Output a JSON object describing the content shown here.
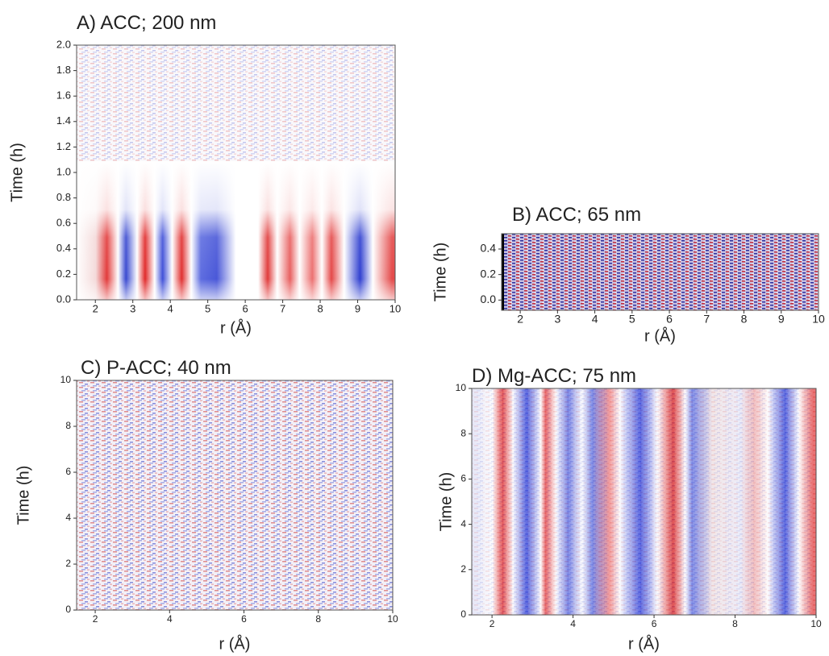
{
  "chart_data": [
    {
      "type": "heatmap",
      "title": "A) ACC; 200 nm",
      "x_label": "r (Å)",
      "y_label": "Time (h)",
      "xlim": [
        1.5,
        10
      ],
      "xticks": [
        2,
        3,
        4,
        5,
        6,
        7,
        8,
        9,
        10
      ],
      "ylim": [
        0,
        2
      ],
      "yticks": [
        {
          "value": 0,
          "label": "0.0"
        },
        0.2,
        0.4,
        0.6,
        0.8,
        {
          "value": 1,
          "label": "1.0"
        },
        1.2,
        1.4,
        1.6,
        1.8,
        {
          "value": 2,
          "label": "2.0"
        }
      ]
    },
    {
      "type": "heatmap",
      "title": "B) ACC; 65 nm",
      "x_label": "r (Å)",
      "y_label": "Time (h)",
      "xlim": [
        1.5,
        10
      ],
      "xticks": [
        2,
        3,
        4,
        5,
        6,
        7,
        8,
        9,
        10
      ],
      "ylim": [
        -0.08,
        0.52
      ],
      "yticks": [
        {
          "value": 0,
          "label": "0.0"
        },
        0.2,
        0.4
      ]
    },
    {
      "type": "heatmap",
      "title": "C) P-ACC; 40 nm",
      "x_label": "r (Å)",
      "y_label": "Time (h)",
      "xlim": [
        1.5,
        10
      ],
      "xticks": [
        2,
        4,
        6,
        8,
        10
      ],
      "ylim": [
        0,
        10
      ],
      "yticks": [
        0,
        2,
        4,
        6,
        8,
        10
      ]
    },
    {
      "type": "heatmap",
      "title": "D) Mg-ACC; 75 nm",
      "x_label": "r (Å)",
      "y_label": "Time (h)",
      "xlim": [
        1.5,
        10
      ],
      "xticks": [
        2,
        4,
        6,
        8,
        10
      ],
      "ylim": [
        0,
        10
      ],
      "yticks": [
        0,
        2,
        4,
        6,
        8,
        10
      ]
    }
  ]
}
